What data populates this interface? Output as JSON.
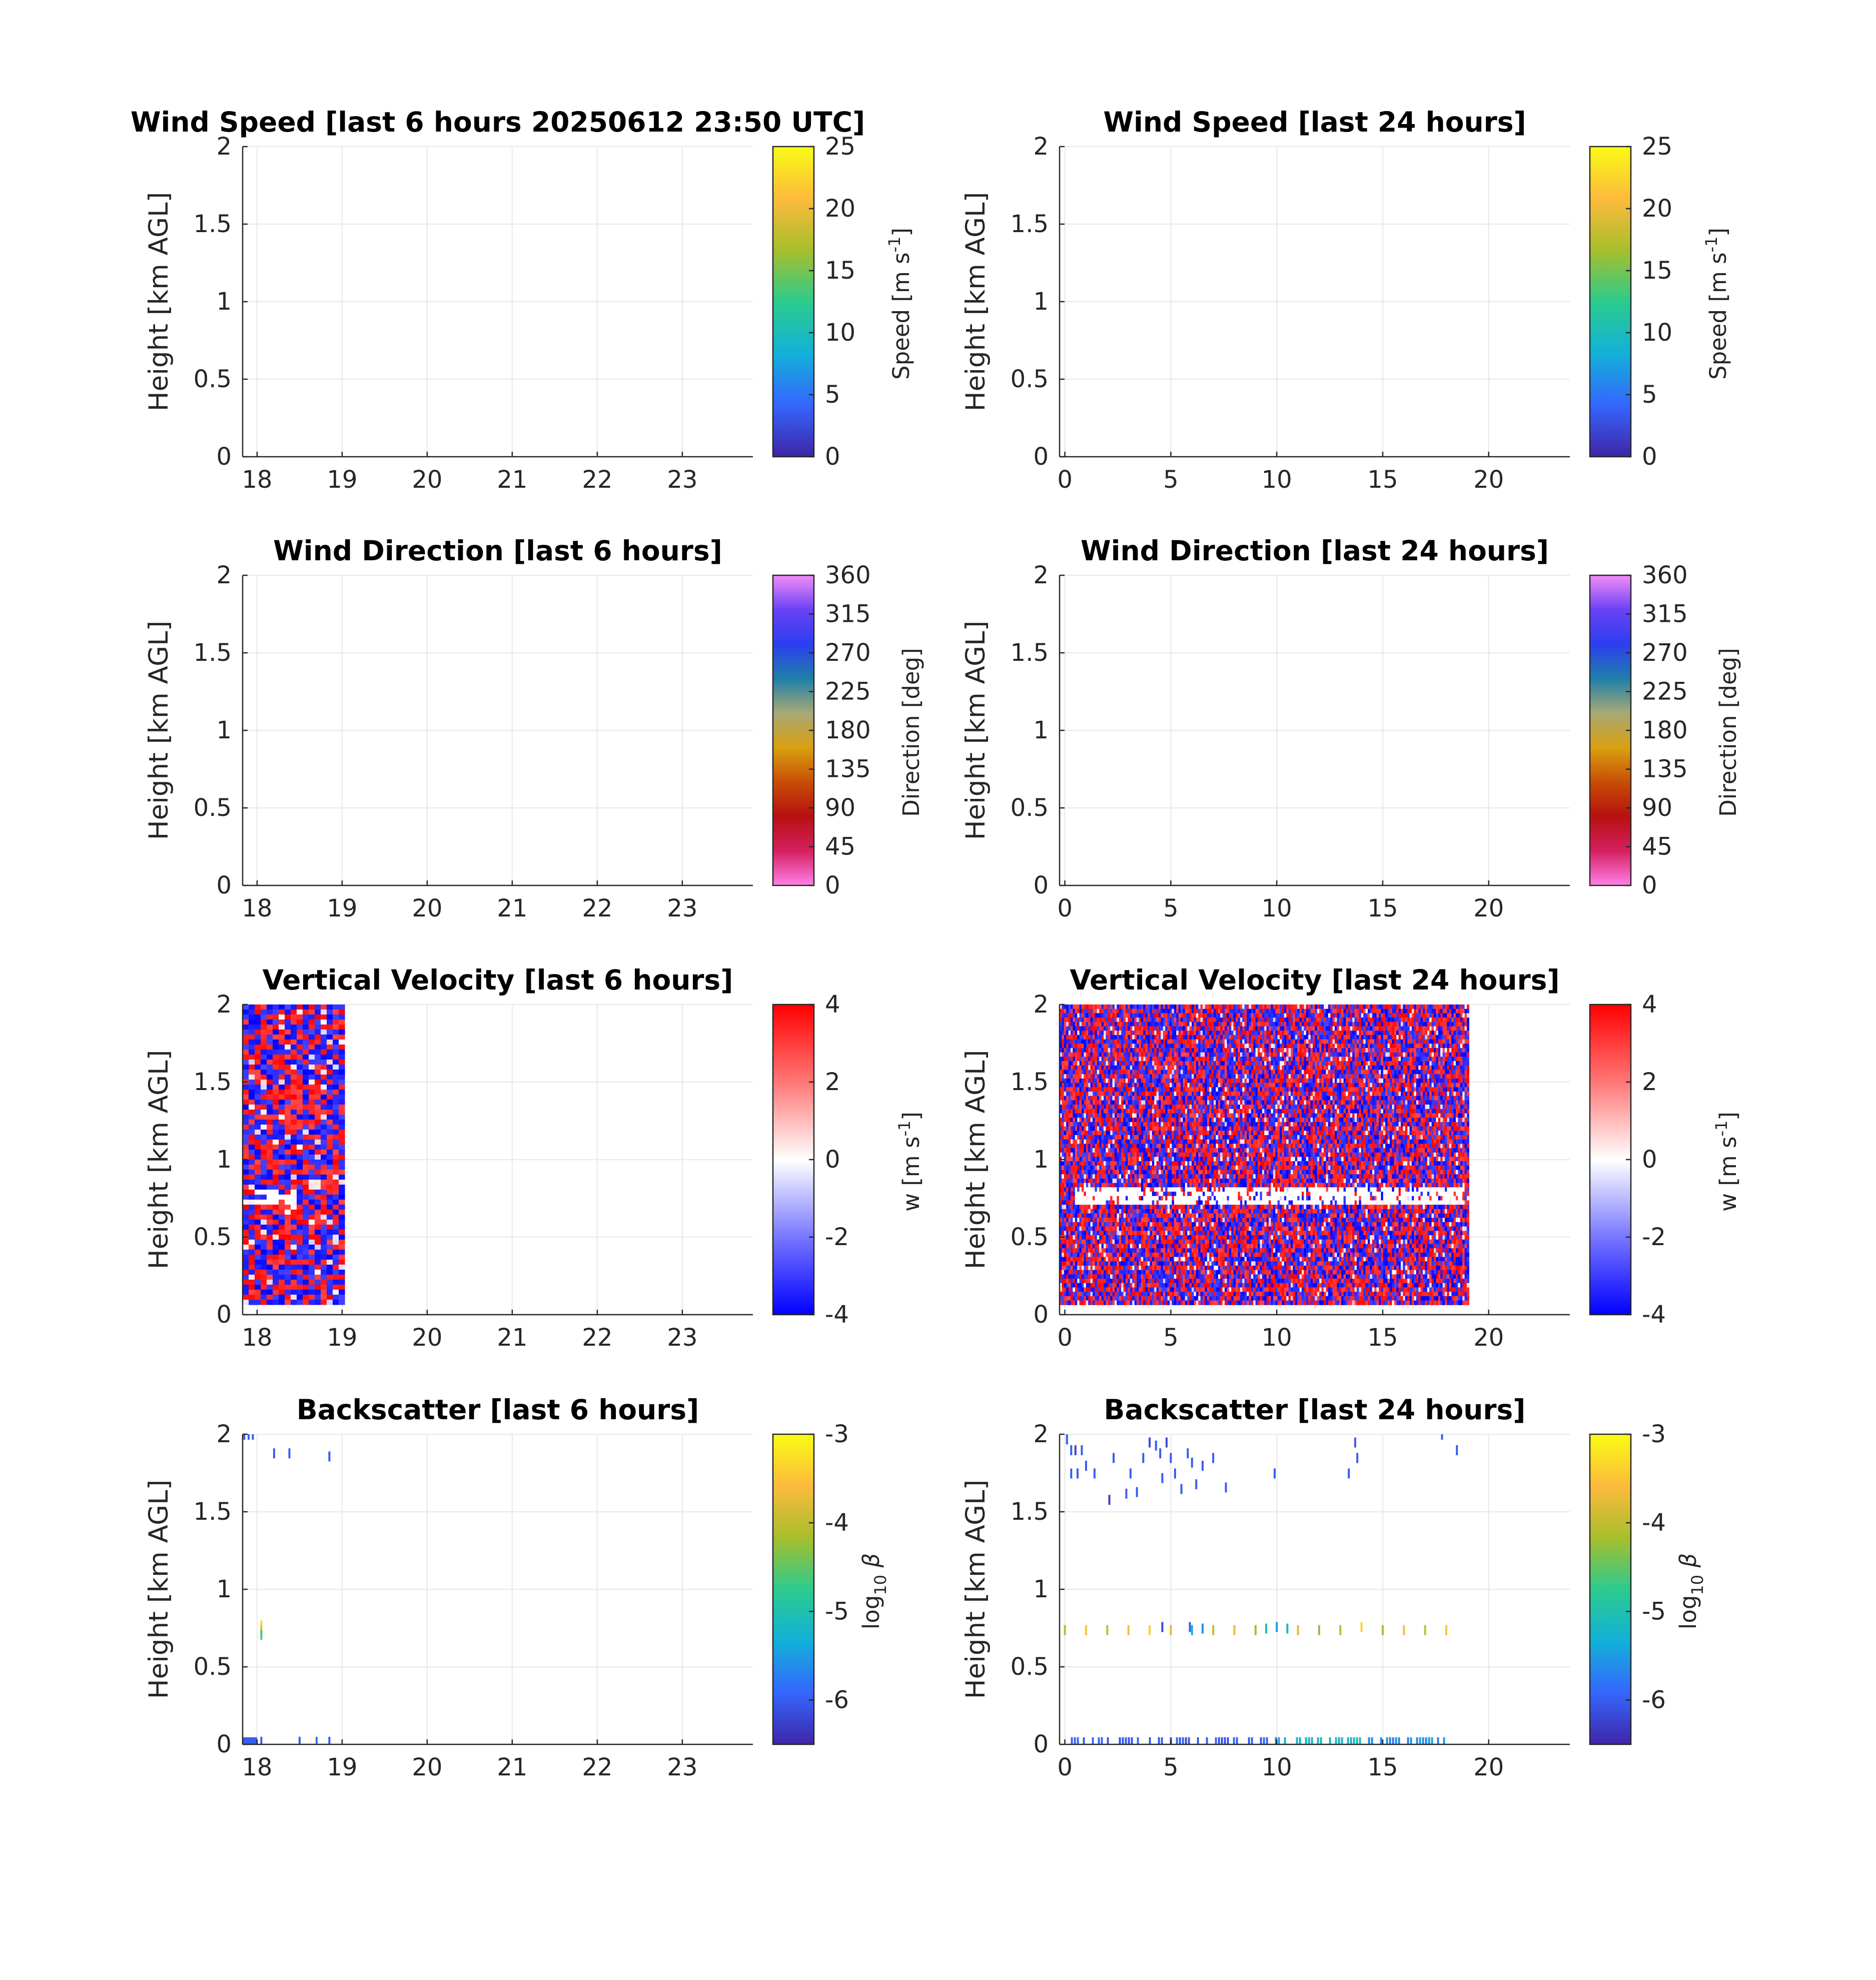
{
  "colorbars": {
    "speed": {
      "label": "Speed [m s",
      "sup": "-1",
      "end": "]",
      "ticks": [
        "0",
        "5",
        "10",
        "15",
        "20",
        "25"
      ],
      "stops": [
        "#3e26a8",
        "#3566fd",
        "#12b1d8",
        "#2ccb8d",
        "#a8be2c",
        "#fdbb3c",
        "#f9fb15"
      ]
    },
    "direction": {
      "label": "Direction [deg]",
      "ticks": [
        "0",
        "45",
        "90",
        "135",
        "180",
        "225",
        "270",
        "315",
        "360"
      ],
      "stops": [
        "#ff80e8",
        "#d52060",
        "#b61010",
        "#c84e06",
        "#d9a010",
        "#a8a876",
        "#1f7fa8",
        "#2c3ef0",
        "#6a42f6",
        "#f28cf8"
      ]
    },
    "w": {
      "label": "w [m s",
      "sup": "-1",
      "end": "]",
      "ticks": [
        "-4",
        "-2",
        "0",
        "2",
        "4"
      ],
      "stops": [
        "#0000ff",
        "#7777ff",
        "#ffffff",
        "#ff7777",
        "#ff0000"
      ]
    },
    "backscatter": {
      "label": "log",
      "sub": "10",
      "beta": "β",
      "ticks": [
        "-6",
        "-5",
        "-4",
        "-3"
      ],
      "stops": [
        "#3e26a8",
        "#3566fd",
        "#12b1d8",
        "#2ccb8d",
        "#a8be2c",
        "#fdbb3c",
        "#f9fb15"
      ]
    }
  },
  "chart_data": [
    {
      "id": "speed6",
      "type": "heatmap",
      "title": "Wind Speed [last 6 hours 20250612 23:50 UTC]",
      "ylabel": "Height [km AGL]",
      "xlim": [
        17.83,
        23.83
      ],
      "ylim": [
        0,
        2
      ],
      "xticks": [
        "18",
        "19",
        "20",
        "21",
        "22",
        "23"
      ],
      "yticks": [
        "0",
        "0.5",
        "1",
        "1.5",
        "2"
      ],
      "colorbar": "speed",
      "clim": [
        0,
        25
      ],
      "data": "none"
    },
    {
      "id": "speed24",
      "type": "heatmap",
      "title": "Wind Speed [last 24 hours]",
      "ylabel": "Height [km AGL]",
      "xlim": [
        -0.25,
        23.83
      ],
      "ylim": [
        0,
        2
      ],
      "xticks": [
        "0",
        "5",
        "10",
        "15",
        "20"
      ],
      "yticks": [
        "0",
        "0.5",
        "1",
        "1.5",
        "2"
      ],
      "colorbar": "speed",
      "clim": [
        0,
        25
      ],
      "data": "none"
    },
    {
      "id": "dir6",
      "type": "heatmap",
      "title": "Wind Direction [last 6 hours]",
      "ylabel": "Height [km AGL]",
      "xlim": [
        17.83,
        23.83
      ],
      "ylim": [
        0,
        2
      ],
      "xticks": [
        "18",
        "19",
        "20",
        "21",
        "22",
        "23"
      ],
      "yticks": [
        "0",
        "0.5",
        "1",
        "1.5",
        "2"
      ],
      "colorbar": "direction",
      "clim": [
        0,
        360
      ],
      "data": "none"
    },
    {
      "id": "dir24",
      "type": "heatmap",
      "title": "Wind Direction [last 24 hours]",
      "ylabel": "Height [km AGL]",
      "xlim": [
        -0.25,
        23.83
      ],
      "ylim": [
        0,
        2
      ],
      "xticks": [
        "0",
        "5",
        "10",
        "15",
        "20"
      ],
      "yticks": [
        "0",
        "0.5",
        "1",
        "1.5",
        "2"
      ],
      "colorbar": "direction",
      "clim": [
        0,
        360
      ],
      "data": "none"
    },
    {
      "id": "w6",
      "type": "heatmap",
      "title": "Vertical Velocity [last 6 hours]",
      "ylabel": "Height [km AGL]",
      "xlim": [
        17.83,
        23.83
      ],
      "ylim": [
        0,
        2
      ],
      "xticks": [
        "18",
        "19",
        "20",
        "21",
        "22",
        "23"
      ],
      "yticks": [
        "0",
        "0.5",
        "1",
        "1.5",
        "2"
      ],
      "colorbar": "w",
      "clim": [
        -4,
        4
      ],
      "data": "noise",
      "data_extent": {
        "x": [
          17.83,
          18.97
        ],
        "y": [
          0.07,
          2
        ]
      },
      "gap_band": {
        "y": [
          0.72,
          0.8
        ],
        "x": [
          17.98,
          18.45
        ]
      }
    },
    {
      "id": "w24",
      "type": "heatmap",
      "title": "Vertical Velocity [last 24 hours]",
      "ylabel": "Height [km AGL]",
      "xlim": [
        -0.25,
        23.83
      ],
      "ylim": [
        0,
        2
      ],
      "xticks": [
        "0",
        "5",
        "10",
        "15",
        "20"
      ],
      "yticks": [
        "0",
        "0.5",
        "1",
        "1.5",
        "2"
      ],
      "colorbar": "w",
      "clim": [
        -4,
        4
      ],
      "data": "noise",
      "data_extent": {
        "x": [
          -0.25,
          18.97
        ],
        "y": [
          0.07,
          2
        ]
      },
      "gap_band": {
        "y": [
          0.72,
          0.8
        ],
        "x": [
          0.5,
          18.8
        ]
      }
    },
    {
      "id": "bs6",
      "type": "heatmap",
      "title": "Backscatter [last 6 hours]",
      "ylabel": "Height [km AGL]",
      "xlim": [
        17.83,
        23.83
      ],
      "ylim": [
        0,
        2
      ],
      "xticks": [
        "18",
        "19",
        "20",
        "21",
        "22",
        "23"
      ],
      "yticks": [
        "0",
        "0.5",
        "1",
        "1.5",
        "2"
      ],
      "colorbar": "backscatter",
      "clim": [
        -6.5,
        -3
      ],
      "data": "sparse",
      "points": [
        [
          17.85,
          2.0,
          -6.0
        ],
        [
          17.9,
          2.0,
          -6.0
        ],
        [
          17.95,
          2.0,
          -6.0
        ],
        [
          18.2,
          1.88,
          -6.0
        ],
        [
          18.38,
          1.88,
          -6.0
        ],
        [
          18.85,
          1.86,
          -6.0
        ],
        [
          18.05,
          0.77,
          -3.3
        ],
        [
          18.05,
          0.74,
          -3.7
        ],
        [
          18.05,
          0.71,
          -4.6
        ],
        [
          18.05,
          0.02,
          -6.0
        ],
        [
          18.5,
          0.02,
          -6.0
        ],
        [
          18.7,
          0.02,
          -5.8
        ],
        [
          18.85,
          0.02,
          -6.0
        ]
      ],
      "band_low": {
        "x": [
          17.83,
          18.0
        ],
        "y": 0.02,
        "value": -6.0
      }
    },
    {
      "id": "bs24",
      "type": "heatmap",
      "title": "Backscatter [last 24 hours]",
      "ylabel": "Height [km AGL]",
      "xlim": [
        -0.25,
        23.83
      ],
      "ylim": [
        0,
        2
      ],
      "xticks": [
        "0",
        "5",
        "10",
        "15",
        "20"
      ],
      "yticks": [
        "0",
        "0.5",
        "1",
        "1.5",
        "2"
      ],
      "colorbar": "backscatter",
      "clim": [
        -6.5,
        -3
      ],
      "data": "sparse",
      "points": [
        [
          0.1,
          1.97,
          -6.0
        ],
        [
          0.3,
          1.9,
          -6.0
        ],
        [
          0.5,
          1.9,
          -6.2
        ],
        [
          0.8,
          1.9,
          -6.0
        ],
        [
          0.3,
          1.75,
          -6.0
        ],
        [
          0.6,
          1.75,
          -6.0
        ],
        [
          1.0,
          1.8,
          -6.0
        ],
        [
          1.4,
          1.75,
          -6.0
        ],
        [
          2.1,
          1.58,
          -6.3
        ],
        [
          2.3,
          1.85,
          -6.0
        ],
        [
          2.9,
          1.62,
          -6.0
        ],
        [
          3.1,
          1.75,
          -6.0
        ],
        [
          3.4,
          1.63,
          -6.0
        ],
        [
          3.7,
          1.85,
          -6.0
        ],
        [
          4.0,
          1.95,
          -6.2
        ],
        [
          4.3,
          1.93,
          -6.0
        ],
        [
          4.5,
          1.88,
          -6.0
        ],
        [
          4.6,
          1.72,
          -6.0
        ],
        [
          4.8,
          1.95,
          -6.2
        ],
        [
          5.0,
          1.85,
          -6.0
        ],
        [
          5.2,
          1.75,
          -6.0
        ],
        [
          5.5,
          1.65,
          -6.0
        ],
        [
          5.8,
          1.88,
          -6.0
        ],
        [
          6.0,
          1.82,
          -6.0
        ],
        [
          6.2,
          1.68,
          -6.0
        ],
        [
          6.5,
          1.8,
          -6.0
        ],
        [
          7.0,
          1.85,
          -6.0
        ],
        [
          7.6,
          1.66,
          -6.0
        ],
        [
          9.9,
          1.75,
          -6.0
        ],
        [
          13.4,
          1.75,
          -6.0
        ],
        [
          13.7,
          1.95,
          -6.0
        ],
        [
          13.8,
          1.85,
          -6.0
        ],
        [
          17.8,
          2.0,
          -6.0
        ],
        [
          18.5,
          1.9,
          -6.0
        ],
        [
          1.0,
          0.74,
          -3.5
        ],
        [
          2.0,
          0.74,
          -4.0
        ],
        [
          3.0,
          0.74,
          -3.6
        ],
        [
          4.0,
          0.74,
          -3.4
        ],
        [
          5.0,
          0.74,
          -3.8
        ],
        [
          5.9,
          0.76,
          -6.0
        ],
        [
          6.0,
          0.74,
          -5.3
        ],
        [
          6.5,
          0.75,
          -5.6
        ],
        [
          7.0,
          0.74,
          -4.0
        ],
        [
          8.0,
          0.74,
          -3.7
        ],
        [
          9.0,
          0.74,
          -4.2
        ],
        [
          9.5,
          0.75,
          -5.0
        ],
        [
          10.0,
          0.76,
          -5.5
        ],
        [
          10.5,
          0.75,
          -5.2
        ],
        [
          11.0,
          0.74,
          -3.8
        ],
        [
          12.0,
          0.74,
          -4.3
        ],
        [
          13.0,
          0.74,
          -4.0
        ],
        [
          14.0,
          0.76,
          -3.4
        ],
        [
          15.0,
          0.74,
          -4.2
        ],
        [
          16.0,
          0.74,
          -3.6
        ],
        [
          17.0,
          0.74,
          -4.0
        ],
        [
          18.0,
          0.74,
          -3.5
        ],
        [
          0.0,
          0.74,
          -4.1
        ],
        [
          4.6,
          0.76,
          -6.2
        ]
      ],
      "band_low": {
        "x": [
          0.0,
          18.0
        ],
        "y": 0.02,
        "value": -5.8
      }
    }
  ]
}
